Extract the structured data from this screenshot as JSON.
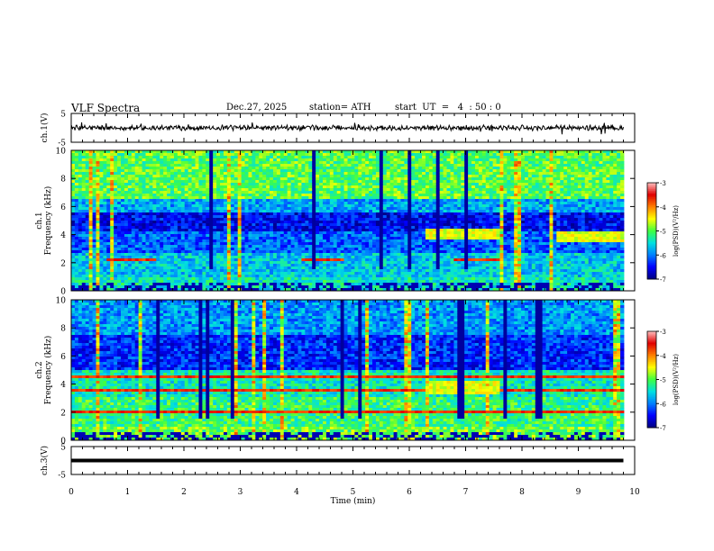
{
  "header": {
    "title": "VLF  Spectra",
    "date": "Dec.27, 2025",
    "station": "station= ATH",
    "start_ut": "start  UT  =   4  : 50 : 0"
  },
  "colors": {
    "colormap_stops": [
      "#000080",
      "#0000ff",
      "#0080ff",
      "#00e0e0",
      "#40ff40",
      "#ffff00",
      "#ff8000",
      "#e00000",
      "#ffc0c0"
    ]
  },
  "chart_data": [
    {
      "id": "ch1-waveform",
      "type": "line",
      "ylabel": "ch.1(V)",
      "ylim": [
        -5,
        5
      ],
      "yticks": [
        "5",
        "-5"
      ],
      "xlim": [
        0,
        10
      ],
      "series": [
        {
          "x": [
            0,
            1,
            2,
            3,
            4,
            5,
            6,
            7,
            8,
            9,
            9.8
          ],
          "y": [
            0,
            0,
            0,
            0,
            0,
            0,
            0,
            0,
            0,
            0,
            0
          ]
        }
      ]
    },
    {
      "id": "ch1-spectrogram",
      "type": "heatmap",
      "ylabel": "ch.1\nFrequency  (kHz)",
      "ylim": [
        0,
        10
      ],
      "yticks": [
        "0",
        "2",
        "4",
        "6",
        "8",
        "10"
      ],
      "xlim": [
        0,
        9.8
      ],
      "colorbar": {
        "label": "log(PSD)(V²/Hz)",
        "range": [
          -7,
          -3
        ],
        "ticks": [
          "-3",
          "-4",
          "-5",
          "-6",
          "-7"
        ]
      },
      "features": [
        {
          "kind": "line",
          "freq_khz": 2.2,
          "t_start": 0.65,
          "t_end": 1.5
        },
        {
          "kind": "line",
          "freq_khz": 2.2,
          "t_start": 4.1,
          "t_end": 4.85
        },
        {
          "kind": "line",
          "freq_khz": 2.2,
          "t_start": 6.8,
          "t_end": 7.6
        },
        {
          "kind": "band",
          "freq_khz": [
            3.7,
            4.4
          ],
          "t_start": 6.3,
          "t_end": 7.6
        },
        {
          "kind": "band",
          "freq_khz": [
            3.5,
            4.2
          ],
          "t_start": 8.6,
          "t_end": 9.8
        }
      ]
    },
    {
      "id": "ch2-spectrogram",
      "type": "heatmap",
      "ylabel": "ch.2\nFrequency  (kHz)",
      "ylim": [
        0,
        10
      ],
      "yticks": [
        "0",
        "2",
        "4",
        "6",
        "8",
        "10"
      ],
      "xlim": [
        0,
        9.8
      ],
      "colorbar": {
        "label": "log(PSD)(V²/Hz)",
        "range": [
          -7,
          -3
        ],
        "ticks": [
          "-3",
          "-4",
          "-5",
          "-6",
          "-7"
        ]
      },
      "features": [
        {
          "kind": "line",
          "freq_khz": 2.0,
          "t_start": 0,
          "t_end": 9.8
        },
        {
          "kind": "line",
          "freq_khz": 3.5,
          "t_start": 0,
          "t_end": 9.8
        },
        {
          "kind": "line",
          "freq_khz": 4.5,
          "t_start": 0,
          "t_end": 9.8
        },
        {
          "kind": "band",
          "freq_khz": [
            3.3,
            4.2
          ],
          "t_start": 6.3,
          "t_end": 7.6
        }
      ]
    },
    {
      "id": "ch3-waveform",
      "type": "line",
      "ylabel": "ch.3(V)",
      "ylim": [
        -5,
        5
      ],
      "yticks": [
        "5",
        "-5"
      ],
      "xlim": [
        0,
        10
      ],
      "series": [
        {
          "x": [
            0,
            9.8
          ],
          "y": [
            0,
            0
          ]
        }
      ]
    }
  ],
  "x_axis": {
    "label": "Time  (min)",
    "ticks": [
      "0",
      "1",
      "2",
      "3",
      "4",
      "5",
      "6",
      "7",
      "8",
      "9",
      "10"
    ]
  }
}
